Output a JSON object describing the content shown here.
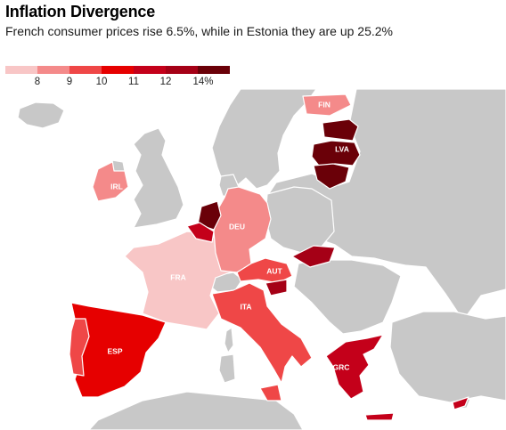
{
  "header": {
    "title": "Inflation Divergence",
    "subtitle": "French consumer prices rise 6.5%, while in Estonia they are up 25.2%"
  },
  "legend": {
    "colors": [
      "#f8c6c6",
      "#f48a8a",
      "#ef4747",
      "#e60000",
      "#c4001a",
      "#a50016",
      "#6a0008"
    ],
    "ticks": [
      "8",
      "9",
      "10",
      "11",
      "12",
      "14%"
    ]
  },
  "map": {
    "colors": {
      "land": "#c8c8c8",
      "border": "#ffffff"
    },
    "countries": [
      {
        "code": "FIN",
        "label": "FIN",
        "color": "#f48a8a"
      },
      {
        "code": "LVA",
        "label": "LVA",
        "color": "#6a0008"
      },
      {
        "code": "IRL",
        "label": "IRL",
        "color": "#f48a8a"
      },
      {
        "code": "DEU",
        "label": "DEU",
        "color": "#f48a8a"
      },
      {
        "code": "FRA",
        "label": "FRA",
        "color": "#f8c6c6"
      },
      {
        "code": "AUT",
        "label": "AUT",
        "color": "#ef4747"
      },
      {
        "code": "ESP",
        "label": "ESP",
        "color": "#e60000"
      },
      {
        "code": "ITA",
        "label": "ITA",
        "color": "#ef4747"
      },
      {
        "code": "GRC",
        "label": "GRC",
        "color": "#c4001a"
      }
    ]
  }
}
